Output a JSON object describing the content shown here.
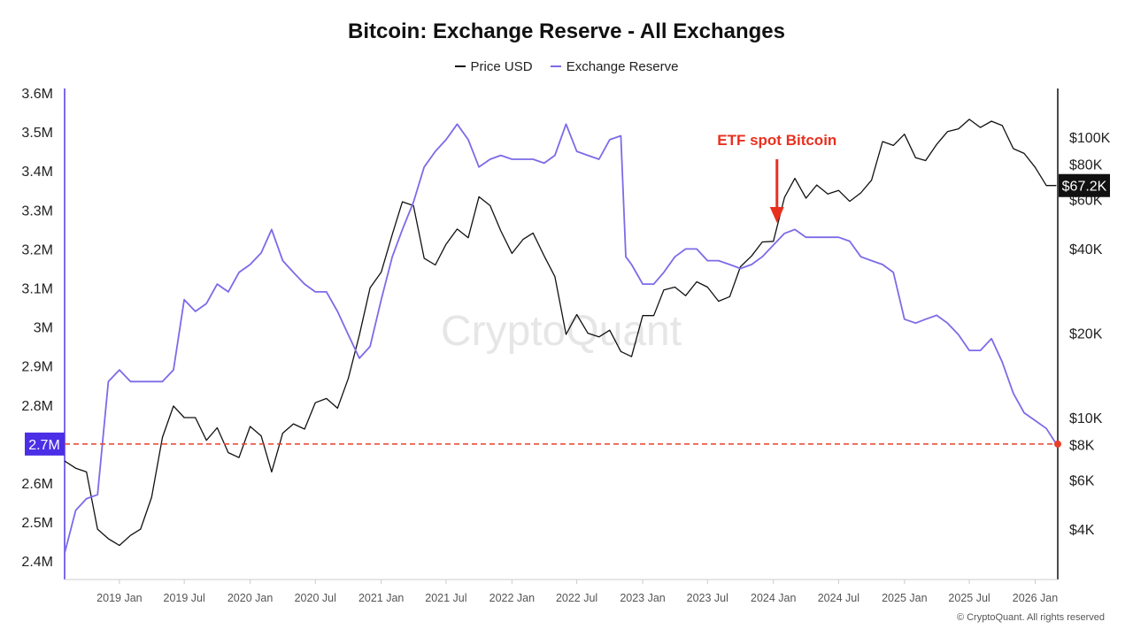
{
  "chart_data": {
    "type": "line",
    "title": "Bitcoin: Exchange Reserve - All Exchanges",
    "legend_placement": "top-center",
    "grid": false,
    "x_ticks": [
      "2019 Jan",
      "2019 Jul",
      "2020 Jan",
      "2020 Jul",
      "2021 Jan",
      "2021 Jul",
      "2022 Jan",
      "2022 Jul",
      "2023 Jan",
      "2023 Jul",
      "2024 Jan",
      "2024 Jul",
      "2025 Jan",
      "2025 Jul",
      "2026 Jan"
    ],
    "xlim": [
      "2018-08-01",
      "2026-03-05"
    ],
    "left_axis": {
      "ylim": [
        2.37,
        3.63
      ],
      "unit": "M",
      "ticks": [
        "3.6M",
        "3.5M",
        "3.4M",
        "3.3M",
        "3.2M",
        "3.1M",
        "3M",
        "2.9M",
        "2.8M",
        "2.6M",
        "2.5M",
        "2.4M"
      ],
      "tick_values": [
        3.6,
        3.5,
        3.4,
        3.3,
        3.2,
        3.1,
        3.0,
        2.9,
        2.8,
        2.6,
        2.5,
        2.4
      ]
    },
    "right_axis": {
      "scale": "log",
      "ticks": [
        "$100K",
        "$80K",
        "$60K",
        "$40K",
        "$20K",
        "$10K",
        "$8K",
        "$6K",
        "$4K"
      ],
      "tick_values": [
        100000,
        80000,
        60000,
        40000,
        20000,
        10000,
        8000,
        6000,
        4000
      ]
    },
    "series": [
      {
        "name": "Price USD",
        "color": "#111111",
        "axis": "right",
        "x": [
          "2018-08-01",
          "2018-09-01",
          "2018-10-01",
          "2018-11-01",
          "2018-12-01",
          "2019-01-01",
          "2019-02-01",
          "2019-03-01",
          "2019-04-01",
          "2019-05-01",
          "2019-06-01",
          "2019-07-01",
          "2019-08-01",
          "2019-09-01",
          "2019-10-01",
          "2019-11-01",
          "2019-12-01",
          "2020-01-01",
          "2020-02-01",
          "2020-03-01",
          "2020-04-01",
          "2020-05-01",
          "2020-06-01",
          "2020-07-01",
          "2020-08-01",
          "2020-09-01",
          "2020-10-01",
          "2020-11-01",
          "2020-12-01",
          "2021-01-01",
          "2021-02-01",
          "2021-03-01",
          "2021-04-01",
          "2021-05-01",
          "2021-06-01",
          "2021-07-01",
          "2021-08-01",
          "2021-09-01",
          "2021-10-01",
          "2021-11-01",
          "2021-12-01",
          "2022-01-01",
          "2022-02-01",
          "2022-03-01",
          "2022-04-01",
          "2022-05-01",
          "2022-06-01",
          "2022-07-01",
          "2022-08-01",
          "2022-09-01",
          "2022-10-01",
          "2022-11-01",
          "2022-12-01",
          "2023-01-01",
          "2023-02-01",
          "2023-03-01",
          "2023-04-01",
          "2023-05-01",
          "2023-06-01",
          "2023-07-01",
          "2023-08-01",
          "2023-09-01",
          "2023-10-01",
          "2023-11-01",
          "2023-12-01",
          "2024-01-01",
          "2024-02-01",
          "2024-03-01",
          "2024-04-01",
          "2024-05-01",
          "2024-06-01",
          "2024-07-01",
          "2024-08-01",
          "2024-09-01",
          "2024-10-01",
          "2024-11-01",
          "2024-12-01",
          "2025-01-01",
          "2025-02-01",
          "2025-03-01",
          "2025-04-01",
          "2025-05-01",
          "2025-06-01",
          "2025-07-01",
          "2025-08-01",
          "2025-09-01",
          "2025-10-01",
          "2025-11-01",
          "2025-12-01",
          "2026-01-01",
          "2026-02-01",
          "2026-03-01"
        ],
        "values": [
          7000,
          6600,
          6400,
          4000,
          3700,
          3500,
          3800,
          4000,
          5200,
          8500,
          11000,
          10000,
          10000,
          8300,
          9200,
          7500,
          7200,
          9300,
          8600,
          6400,
          8800,
          9500,
          9100,
          11300,
          11700,
          10800,
          13800,
          19700,
          29000,
          33000,
          45000,
          58800,
          57000,
          37000,
          35000,
          41500,
          47000,
          43800,
          61300,
          57000,
          46300,
          38500,
          43200,
          45500,
          37700,
          31800,
          19800,
          23300,
          20000,
          19400,
          20500,
          17200,
          16500,
          23100,
          23100,
          28500,
          29200,
          27200,
          30500,
          29200,
          26000,
          27000,
          34500,
          37700,
          42300,
          42500,
          61000,
          71300,
          60600,
          67500,
          62700,
          64600,
          59000,
          63300,
          70200,
          96400,
          93400,
          102400,
          84400,
          82500,
          94200,
          104600,
          107100,
          115700,
          108200,
          114000,
          110000,
          91000,
          87500,
          78000,
          67200,
          67200
        ]
      },
      {
        "name": "Exchange Reserve",
        "color": "#7C6BE8",
        "axis": "left",
        "x": [
          "2018-08-01",
          "2018-09-01",
          "2018-10-01",
          "2018-11-01",
          "2018-12-01",
          "2019-01-01",
          "2019-02-01",
          "2019-03-01",
          "2019-04-01",
          "2019-05-01",
          "2019-06-01",
          "2019-07-01",
          "2019-08-01",
          "2019-09-01",
          "2019-10-01",
          "2019-11-01",
          "2019-12-01",
          "2020-01-01",
          "2020-02-01",
          "2020-03-01",
          "2020-04-01",
          "2020-05-01",
          "2020-06-01",
          "2020-07-01",
          "2020-08-01",
          "2020-09-01",
          "2020-10-01",
          "2020-11-01",
          "2020-12-01",
          "2021-01-01",
          "2021-02-01",
          "2021-03-01",
          "2021-04-01",
          "2021-05-01",
          "2021-06-01",
          "2021-07-01",
          "2021-08-01",
          "2021-09-01",
          "2021-10-01",
          "2021-11-01",
          "2021-12-01",
          "2022-01-01",
          "2022-02-01",
          "2022-03-01",
          "2022-04-01",
          "2022-05-01",
          "2022-06-01",
          "2022-07-01",
          "2022-08-01",
          "2022-09-01",
          "2022-10-01",
          "2022-11-01",
          "2022-11-15",
          "2022-12-01",
          "2023-01-01",
          "2023-02-01",
          "2023-03-01",
          "2023-04-01",
          "2023-05-01",
          "2023-06-01",
          "2023-07-01",
          "2023-08-01",
          "2023-09-01",
          "2023-10-01",
          "2023-11-01",
          "2023-12-01",
          "2024-01-01",
          "2024-02-01",
          "2024-03-01",
          "2024-04-01",
          "2024-05-01",
          "2024-06-01",
          "2024-07-01",
          "2024-08-01",
          "2024-09-01",
          "2024-10-01",
          "2024-11-01",
          "2024-12-01",
          "2025-01-01",
          "2025-02-01",
          "2025-03-01",
          "2025-04-01",
          "2025-05-01",
          "2025-06-01",
          "2025-07-01",
          "2025-08-01",
          "2025-09-01",
          "2025-10-01",
          "2025-11-01",
          "2025-12-01",
          "2026-01-01",
          "2026-02-01",
          "2026-03-01"
        ],
        "values": [
          2.42,
          2.53,
          2.56,
          2.57,
          2.86,
          2.89,
          2.86,
          2.86,
          2.86,
          2.86,
          2.89,
          3.07,
          3.04,
          3.06,
          3.11,
          3.09,
          3.14,
          3.16,
          3.19,
          3.25,
          3.17,
          3.14,
          3.11,
          3.09,
          3.09,
          3.04,
          2.98,
          2.92,
          2.95,
          3.07,
          3.18,
          3.25,
          3.32,
          3.41,
          3.45,
          3.48,
          3.52,
          3.48,
          3.41,
          3.43,
          3.44,
          3.43,
          3.43,
          3.43,
          3.42,
          3.44,
          3.52,
          3.45,
          3.44,
          3.43,
          3.48,
          3.49,
          3.18,
          3.16,
          3.11,
          3.11,
          3.14,
          3.18,
          3.2,
          3.2,
          3.17,
          3.17,
          3.16,
          3.15,
          3.16,
          3.18,
          3.21,
          3.24,
          3.25,
          3.23,
          3.23,
          3.23,
          3.23,
          3.22,
          3.18,
          3.17,
          3.16,
          3.14,
          3.02,
          3.01,
          3.02,
          3.03,
          3.01,
          2.98,
          2.94,
          2.94,
          2.97,
          2.91,
          2.83,
          2.78,
          2.76,
          2.74,
          2.7
        ]
      }
    ],
    "reference_line": {
      "value": 2.7,
      "label": "2.7M",
      "color": "#E8402A",
      "label_color": "#4B2FE6"
    },
    "last_price_label": "$67.2K",
    "annotation": {
      "text": "ETF spot Bitcoin",
      "date": "2024-01-11",
      "color": "#E8301F"
    },
    "watermark": "CryptoQuant"
  },
  "copyright": "© CryptoQuant. All rights reserved"
}
